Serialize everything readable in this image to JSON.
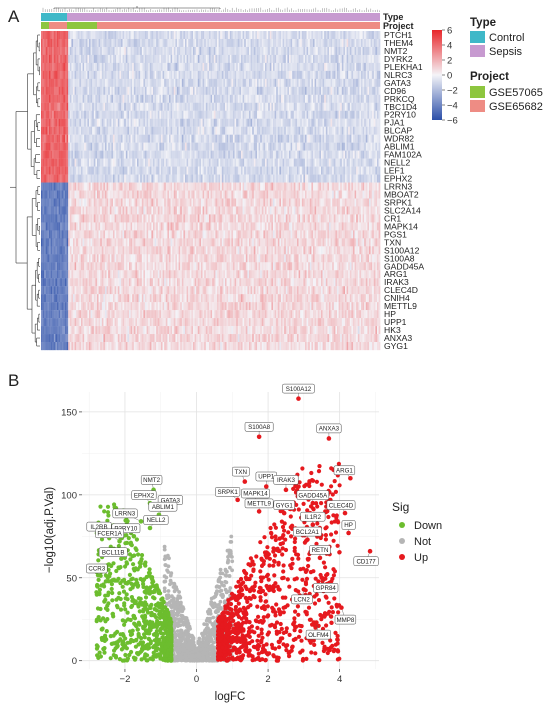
{
  "panels": {
    "a": "A",
    "b": "B"
  },
  "heatmap": {
    "track_labels": {
      "type": "Type",
      "project": "Project"
    },
    "colorbar_ticks": [
      "6",
      "4",
      "2",
      "0",
      "−2",
      "−4",
      "−6"
    ],
    "colorbar_range": [
      -6,
      6
    ],
    "legend_type": {
      "title": "Type",
      "items": [
        {
          "label": "Control",
          "color": "#3fb8c8"
        },
        {
          "label": "Sepsis",
          "color": "#c79ad0"
        }
      ]
    },
    "legend_project": {
      "title": "Project",
      "items": [
        {
          "label": "GSE57065",
          "color": "#8dc63f"
        },
        {
          "label": "GSE65682",
          "color": "#ee8c84"
        }
      ]
    },
    "genes": [
      "PTCH1",
      "THEM4",
      "NMT2",
      "DYRK2",
      "PLEKHA1",
      "NLRC3",
      "GATA3",
      "CD96",
      "PRKCQ",
      "TBC1D4",
      "P2RY10",
      "PJA1",
      "BLCAP",
      "WDR82",
      "ABLIM1",
      "FAM102A",
      "NELL2",
      "LEF1",
      "EPHX2",
      "LRRN3",
      "MBOAT2",
      "SRPK1",
      "SLC2A14",
      "CR1",
      "MAPK14",
      "PGS1",
      "TXN",
      "S100A12",
      "S100A8",
      "GADD45A",
      "ARG1",
      "IRAK3",
      "CLEC4D",
      "CNIH4",
      "METTL9",
      "HP",
      "UPP1",
      "HK3",
      "ANXA3",
      "GYG1"
    ],
    "colors": {
      "high": "#e8262a",
      "mid": "#f4f4f8",
      "low": "#2b4ea8"
    }
  },
  "chart_data": {
    "type": "scatter",
    "xlabel": "logFC",
    "ylabel": "−log10(adj.P.Val)",
    "xlim": [
      -3.2,
      5.1
    ],
    "ylim": [
      -5,
      162
    ],
    "xticks": [
      "−2",
      "0",
      "2",
      "4"
    ],
    "xtick_values": [
      -2,
      0,
      2,
      4
    ],
    "yticks": [
      "0",
      "50",
      "100",
      "150"
    ],
    "ytick_values": [
      0,
      50,
      100,
      150
    ],
    "grid": true,
    "legend": {
      "title": "Sig",
      "position": "right",
      "items": [
        {
          "name": "Down",
          "color": "#6cbd2e"
        },
        {
          "name": "Not",
          "color": "#b5b5b5"
        },
        {
          "name": "Up",
          "color": "#e6191e"
        }
      ]
    },
    "labeled_points": [
      {
        "label": "S100A12",
        "x": 2.85,
        "y": 158,
        "group": "Up"
      },
      {
        "label": "S100A8",
        "x": 1.75,
        "y": 135,
        "group": "Up"
      },
      {
        "label": "ANXA3",
        "x": 3.7,
        "y": 134,
        "group": "Up"
      },
      {
        "label": "ARG1",
        "x": 4.3,
        "y": 110,
        "group": "Up"
      },
      {
        "label": "TXN",
        "x": 1.35,
        "y": 108,
        "group": "Up"
      },
      {
        "label": "UPP1",
        "x": 1.95,
        "y": 105,
        "group": "Up"
      },
      {
        "label": "IRAK3",
        "x": 2.5,
        "y": 103,
        "group": "Up"
      },
      {
        "label": "SRPK1",
        "x": 1.15,
        "y": 97,
        "group": "Up"
      },
      {
        "label": "MAPK14",
        "x": 1.65,
        "y": 96,
        "group": "Up"
      },
      {
        "label": "GADD45A",
        "x": 3.25,
        "y": 95,
        "group": "Up"
      },
      {
        "label": "METTL9",
        "x": 1.75,
        "y": 90,
        "group": "Up"
      },
      {
        "label": "CLEC4D",
        "x": 4.15,
        "y": 89,
        "group": "Up"
      },
      {
        "label": "GYG1",
        "x": 2.45,
        "y": 89,
        "group": "Up"
      },
      {
        "label": "IL1R2",
        "x": 3.25,
        "y": 82,
        "group": "Up"
      },
      {
        "label": "HP",
        "x": 4.25,
        "y": 77,
        "group": "Up"
      },
      {
        "label": "BCL2A1",
        "x": 3.1,
        "y": 73,
        "group": "Up"
      },
      {
        "label": "CD177",
        "x": 4.85,
        "y": 66,
        "group": "Up"
      },
      {
        "label": "RETN",
        "x": 3.45,
        "y": 62,
        "group": "Up"
      },
      {
        "label": "GPR84",
        "x": 3.5,
        "y": 50,
        "group": "Up"
      },
      {
        "label": "LCN2",
        "x": 3.0,
        "y": 43,
        "group": "Up"
      },
      {
        "label": "MMP8",
        "x": 4.05,
        "y": 32,
        "group": "Up"
      },
      {
        "label": "OLFM4",
        "x": 3.35,
        "y": 23,
        "group": "Up"
      },
      {
        "label": "NMT2",
        "x": -1.2,
        "y": 103,
        "group": "Down"
      },
      {
        "label": "EPHX2",
        "x": -1.3,
        "y": 95,
        "group": "Down"
      },
      {
        "label": "GATA3",
        "x": -0.9,
        "y": 92,
        "group": "Down"
      },
      {
        "label": "ABLIM1",
        "x": -1.05,
        "y": 88,
        "group": "Down"
      },
      {
        "label": "LRRN3",
        "x": -1.55,
        "y": 84,
        "group": "Down"
      },
      {
        "label": "NELL2",
        "x": -1.3,
        "y": 80,
        "group": "Down"
      },
      {
        "label": "IL2RB",
        "x": -2.5,
        "y": 76,
        "group": "Down"
      },
      {
        "label": "P2RY10",
        "x": -1.75,
        "y": 75,
        "group": "Down"
      },
      {
        "label": "FCER1A",
        "x": -2.15,
        "y": 72,
        "group": "Down"
      },
      {
        "label": "BCL11B",
        "x": -2.05,
        "y": 63,
        "group": "Down"
      },
      {
        "label": "CCR3",
        "x": -2.45,
        "y": 58,
        "group": "Down"
      }
    ]
  }
}
